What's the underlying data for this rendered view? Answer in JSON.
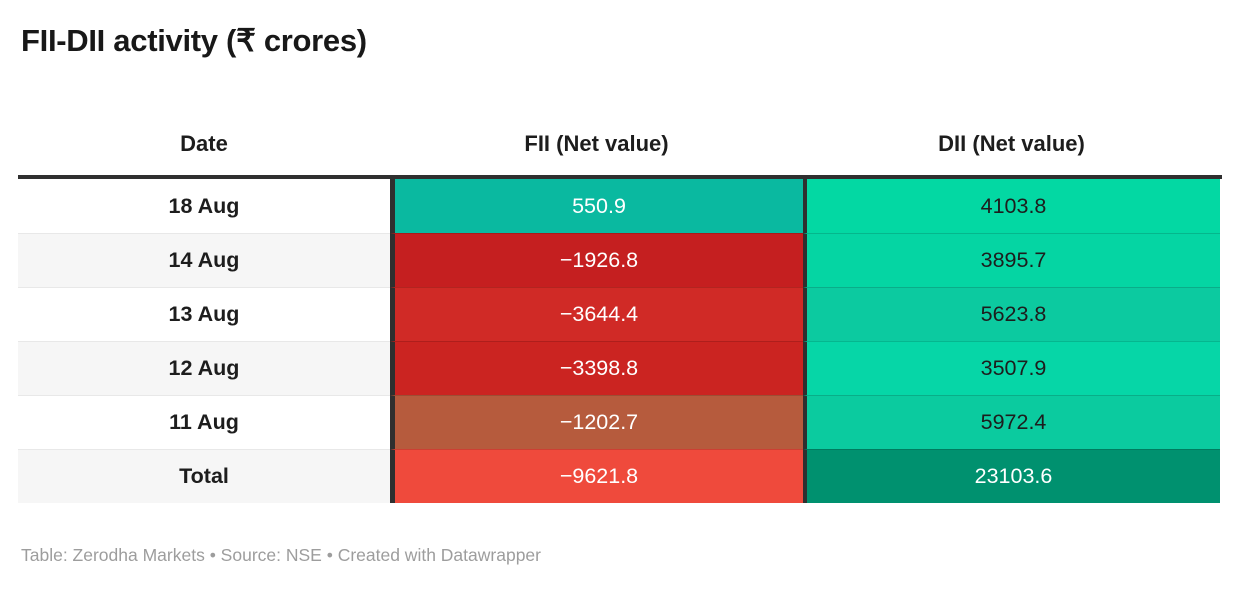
{
  "title": "FII-DII activity (₹ crores)",
  "footer": "Table: Zerodha Markets • Source: NSE • Created with Datawrapper",
  "chart_data": {
    "type": "table",
    "title": "FII-DII activity (₹ crores)",
    "columns": [
      "Date",
      "FII (Net value)",
      "DII (Net value)"
    ],
    "rows": [
      {
        "date": "18 Aug",
        "row_bg": "#ffffff",
        "fii": {
          "text": "550.9",
          "value": 550.9,
          "bg": "#0ab9a0",
          "fg": "#ffffff"
        },
        "dii": {
          "text": "4103.8",
          "value": 4103.8,
          "bg": "#03d8a3",
          "fg": "#1d1d1d"
        }
      },
      {
        "date": "14 Aug",
        "row_bg": "#f6f6f6",
        "fii": {
          "text": "−1926.8",
          "value": -1926.8,
          "bg": "#c51f20",
          "fg": "#ffffff"
        },
        "dii": {
          "text": "3895.7",
          "value": 3895.7,
          "bg": "#05d5a3",
          "fg": "#1d1d1d"
        }
      },
      {
        "date": "13 Aug",
        "row_bg": "#ffffff",
        "fii": {
          "text": "−3644.4",
          "value": -3644.4,
          "bg": "#d02a26",
          "fg": "#ffffff"
        },
        "dii": {
          "text": "5623.8",
          "value": 5623.8,
          "bg": "#0ccaa0",
          "fg": "#1d1d1d"
        }
      },
      {
        "date": "12 Aug",
        "row_bg": "#f6f6f6",
        "fii": {
          "text": "−3398.8",
          "value": -3398.8,
          "bg": "#cb2421",
          "fg": "#ffffff"
        },
        "dii": {
          "text": "3507.9",
          "value": 3507.9,
          "bg": "#06d6a7",
          "fg": "#1d1d1d"
        }
      },
      {
        "date": "11 Aug",
        "row_bg": "#ffffff",
        "fii": {
          "text": "−1202.7",
          "value": -1202.7,
          "bg": "#b65b3d",
          "fg": "#ffffff"
        },
        "dii": {
          "text": "5972.4",
          "value": 5972.4,
          "bg": "#0bcb9f",
          "fg": "#1d1d1d"
        }
      },
      {
        "date": "Total",
        "row_bg": "#f6f6f6",
        "fii": {
          "text": "−9621.8",
          "value": -9621.8,
          "bg": "#ef4a3c",
          "fg": "#ffffff"
        },
        "dii": {
          "text": "23103.6",
          "value": 23103.6,
          "bg": "#00916f",
          "fg": "#ffffff"
        }
      }
    ],
    "colors": {
      "separator_dark": "#2f2f2f",
      "date_row_alt": "#f6f6f6",
      "header_text": "#1d1d1d",
      "footer_text": "#9d9d9d"
    },
    "layout": {
      "column_value_alignment": "center",
      "header_rule": "thick-dark"
    }
  }
}
